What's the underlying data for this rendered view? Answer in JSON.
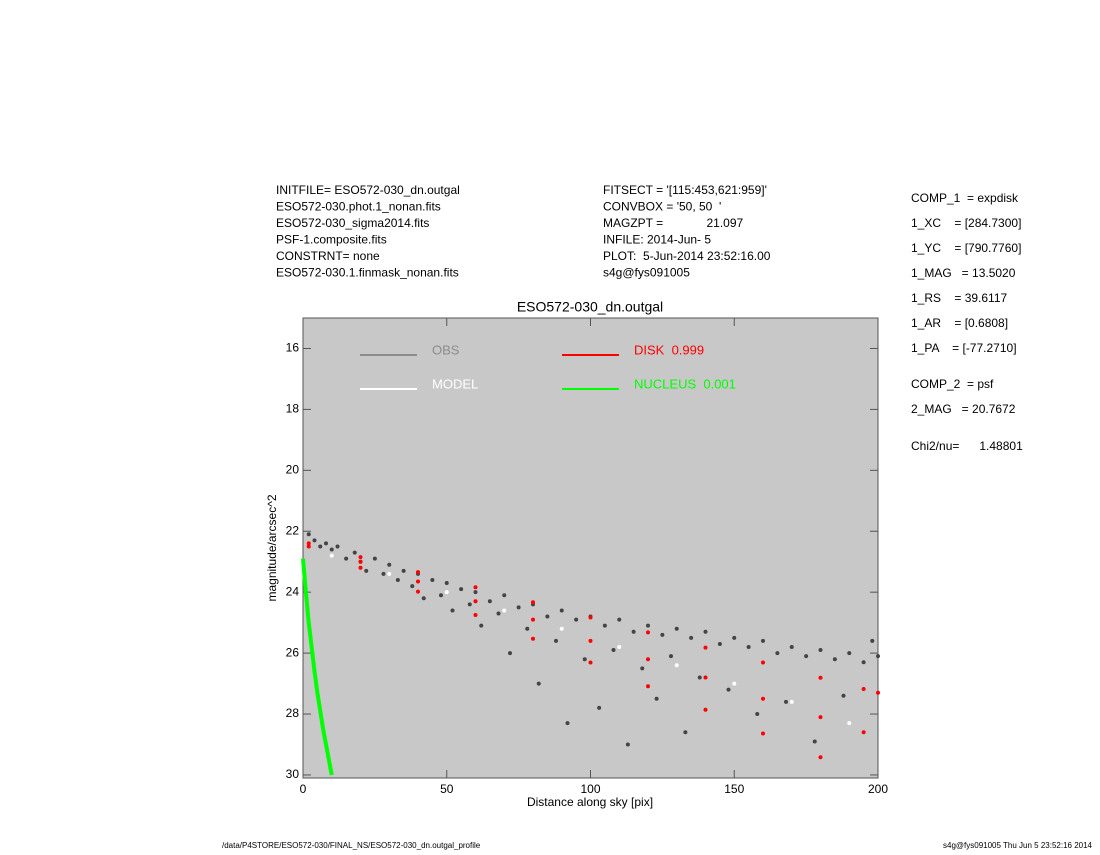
{
  "header": {
    "left": [
      "INITFILE= ESO572-030_dn.outgal",
      "ESO572-030.phot.1_nonan.fits",
      "ESO572-030_sigma2014.fits",
      "PSF-1.composite.fits",
      "CONSTRNT= none",
      "ESO572-030.1.finmask_nonan.fits"
    ],
    "middle": [
      "FITSECT = '[115:453,621:959]'",
      "CONVBOX = '50, 50  '",
      "MAGZPT =             21.097",
      "INFILE: 2014-Jun- 5",
      "PLOT:  5-Jun-2014 23:52:16.00",
      "s4g@fys091005"
    ]
  },
  "parameters": [
    [
      "COMP_1  = expdisk",
      "1_XC    = [284.7300]",
      "1_YC    = [790.7760]",
      "1_MAG   = 13.5020",
      "1_RS    = 39.6117",
      "1_AR    = [0.6808]",
      "1_PA    = [-77.2710]"
    ],
    [
      "COMP_2  = psf",
      "2_MAG   = 20.7672"
    ],
    [
      "Chi2/nu=      1.48801"
    ]
  ],
  "footer": {
    "left": "/data/P4STORE/ESO572-030/FINAL_NS/ESO572-030_dn.outgal_profile",
    "right": "s4g@fys091005  Thu Jun  5 23:52:16 2014"
  },
  "chart_data": {
    "type": "scatter",
    "title": "ESO572-030_dn.outgal",
    "x_label": "Distance along sky [pix]",
    "y_label": "magnitude/arcsec^2",
    "xlim": [
      0,
      200
    ],
    "xticks": [
      0,
      50,
      100,
      150,
      200
    ],
    "ylim": [
      15,
      30.1
    ],
    "yticks": [
      16,
      18,
      20,
      22,
      24,
      26,
      28,
      30
    ],
    "y_inverted": true,
    "background": "#c8c8c8",
    "series": [
      {
        "name": "OBS",
        "color": "#444444",
        "legend_color": "#8c8c8c",
        "mode": "dots",
        "x": [
          2,
          4,
          6,
          8,
          10,
          12,
          15,
          18,
          20,
          22,
          25,
          28,
          30,
          33,
          35,
          38,
          40,
          42,
          45,
          48,
          50,
          52,
          55,
          58,
          60,
          62,
          65,
          68,
          70,
          72,
          75,
          78,
          80,
          82,
          85,
          88,
          90,
          92,
          95,
          98,
          100,
          103,
          105,
          108,
          110,
          113,
          115,
          118,
          120,
          123,
          125,
          128,
          130,
          133,
          135,
          138,
          140,
          145,
          148,
          150,
          155,
          158,
          160,
          165,
          168,
          170,
          175,
          178,
          180,
          185,
          188,
          190,
          195,
          198,
          200
        ],
        "values": [
          22.1,
          22.3,
          22.5,
          22.4,
          22.6,
          22.5,
          22.9,
          22.7,
          23.0,
          23.3,
          22.9,
          23.4,
          23.1,
          23.6,
          23.3,
          23.8,
          23.4,
          24.2,
          23.6,
          24.1,
          23.7,
          24.6,
          23.9,
          24.4,
          24.0,
          25.1,
          24.3,
          24.7,
          24.1,
          26.0,
          24.5,
          25.2,
          24.4,
          27.0,
          24.8,
          25.6,
          24.6,
          28.3,
          24.9,
          26.2,
          24.8,
          27.8,
          25.1,
          25.9,
          24.9,
          29.0,
          25.3,
          26.5,
          25.1,
          27.5,
          25.4,
          26.1,
          25.2,
          28.6,
          25.5,
          26.8,
          25.3,
          25.7,
          27.2,
          25.5,
          25.8,
          28.0,
          25.6,
          26.0,
          27.6,
          25.8,
          26.1,
          28.9,
          25.9,
          26.2,
          27.4,
          26.0,
          26.3,
          25.6,
          26.1
        ]
      },
      {
        "name": "MODEL",
        "color": "#ffffff",
        "legend_color": "#ffffff",
        "mode": "dots",
        "x": [
          10,
          30,
          50,
          70,
          90,
          110,
          130,
          150,
          170,
          190
        ],
        "values": [
          22.8,
          23.4,
          24.0,
          24.6,
          25.2,
          25.8,
          26.4,
          27.0,
          27.6,
          28.3
        ]
      },
      {
        "name": "DISK  0.999",
        "color": "#ff0000",
        "legend_color": "#ff0000",
        "mode": "dots",
        "x": [
          2,
          2,
          20,
          20,
          20,
          40,
          40,
          40,
          60,
          60,
          60,
          80,
          80,
          80,
          100,
          100,
          100,
          120,
          120,
          120,
          140,
          140,
          140,
          160,
          160,
          160,
          180,
          180,
          180,
          195,
          195,
          200
        ],
        "values": [
          22.4,
          22.5,
          22.85,
          23.0,
          23.2,
          23.34,
          23.65,
          23.98,
          23.84,
          24.3,
          24.75,
          24.33,
          24.9,
          25.53,
          24.83,
          25.6,
          26.31,
          25.32,
          26.2,
          27.09,
          25.82,
          26.8,
          27.86,
          26.31,
          27.5,
          28.64,
          26.81,
          28.1,
          29.42,
          27.18,
          28.6,
          27.3
        ]
      },
      {
        "name": "NUCLEUS  0.001",
        "color": "#00ff00",
        "legend_color": "#00ff00",
        "mode": "line",
        "x": [
          0,
          1,
          2,
          3,
          4,
          5,
          6,
          7,
          8,
          9,
          10
        ],
        "values": [
          22.9,
          24.0,
          25.0,
          25.8,
          26.6,
          27.3,
          27.9,
          28.5,
          29.0,
          29.5,
          30.0
        ]
      }
    ]
  }
}
